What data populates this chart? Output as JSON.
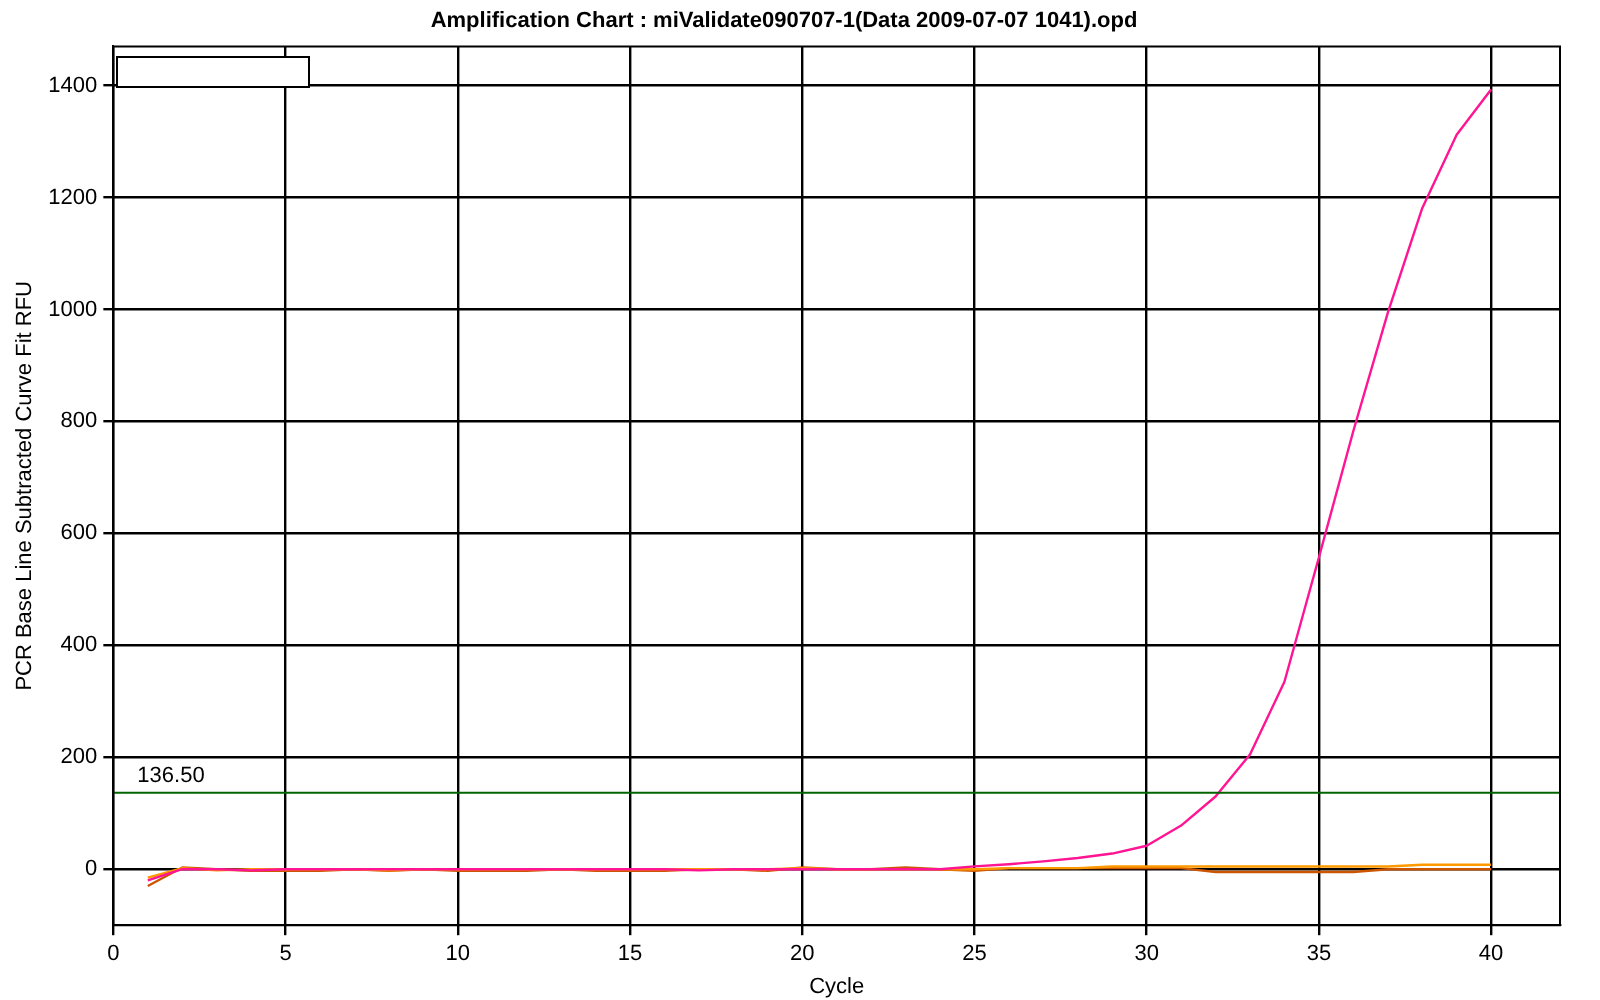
{
  "chart_data": {
    "type": "line",
    "title": "Amplification Chart : miValidate090707-1(Data 2009-07-07 1041).opd",
    "xlabel": "Cycle",
    "ylabel": "PCR Base Line Subtracted Curve Fit RFU",
    "x": [
      1,
      2,
      3,
      4,
      5,
      6,
      7,
      8,
      9,
      10,
      11,
      12,
      13,
      14,
      15,
      16,
      17,
      18,
      19,
      20,
      21,
      22,
      23,
      24,
      25,
      26,
      27,
      28,
      29,
      30,
      31,
      32,
      33,
      34,
      35,
      36,
      37,
      38,
      39,
      40
    ],
    "series": [
      {
        "color": "#ff1493",
        "values": [
          -20,
          0,
          0,
          -2,
          0,
          0,
          0,
          0,
          0,
          0,
          0,
          0,
          0,
          0,
          0,
          0,
          -2,
          0,
          0,
          0,
          0,
          0,
          0,
          0,
          5,
          9,
          14,
          20,
          28,
          42,
          78,
          130,
          205,
          335,
          557,
          783,
          994,
          1181,
          1312,
          1393
        ]
      },
      {
        "color": "#ff9900",
        "values": [
          -15,
          2,
          -2,
          0,
          0,
          0,
          0,
          -2,
          0,
          0,
          0,
          0,
          0,
          0,
          0,
          0,
          0,
          0,
          0,
          2,
          0,
          0,
          0,
          0,
          0,
          2,
          2,
          2,
          5,
          5,
          5,
          5,
          5,
          5,
          5,
          5,
          5,
          8,
          8,
          8
        ]
      },
      {
        "color": "#cc5500",
        "values": [
          -30,
          3,
          0,
          -3,
          -3,
          -3,
          0,
          -3,
          0,
          -3,
          -3,
          -3,
          0,
          -3,
          -3,
          -3,
          0,
          0,
          -3,
          3,
          0,
          0,
          3,
          0,
          -3,
          2,
          2,
          2,
          2,
          2,
          2,
          -5,
          -5,
          -5,
          -5,
          -5,
          0,
          0,
          0,
          0
        ]
      }
    ],
    "xlim": [
      0,
      42
    ],
    "xticks": [
      0,
      5,
      10,
      15,
      20,
      25,
      30,
      35,
      40
    ],
    "ylim": [
      -100,
      1470
    ],
    "yticks": [
      0,
      200,
      400,
      600,
      800,
      1000,
      1200,
      1400
    ],
    "ref_lines": [
      {
        "axis": "y",
        "value": 136.5,
        "label": "136.50",
        "color": "#006400"
      }
    ],
    "grid": true,
    "legend": false,
    "marker": "none",
    "line_style": "solid"
  }
}
